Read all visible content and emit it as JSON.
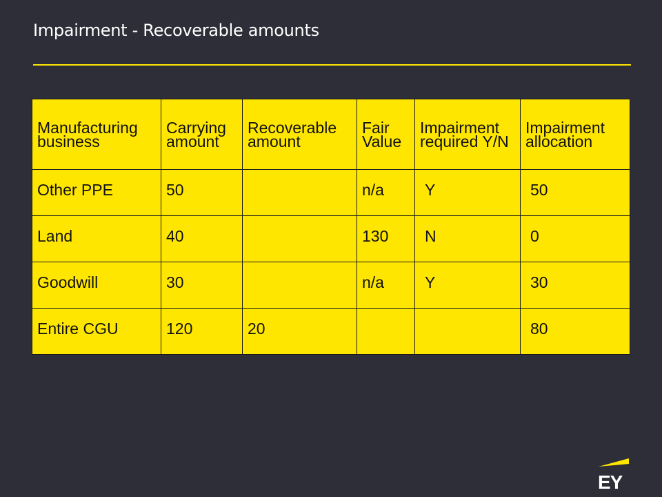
{
  "slide": {
    "title": "Impairment - Recoverable amounts"
  },
  "table": {
    "headers": [
      "Manufacturing business",
      "Carrying amount",
      "Recoverable amount",
      "Fair Value",
      "Impairment required Y/N",
      "Impairment allocation"
    ],
    "rows": [
      [
        "Other PPE",
        "50",
        "",
        "n/a",
        "Y",
        "50"
      ],
      [
        "Land",
        "40",
        "",
        "130",
        "N",
        "0"
      ],
      [
        "Goodwill",
        "30",
        "",
        "n/a",
        "Y",
        "30"
      ],
      [
        "Entire CGU",
        "120",
        "20",
        "",
        "",
        "80"
      ]
    ]
  },
  "logo": {
    "text": "EY",
    "icon": "ey-logo-icon",
    "accent_color": "#ffe600"
  },
  "colors": {
    "background": "#2e2e38",
    "table_fill": "#ffe600",
    "title_text": "#ffffff"
  }
}
